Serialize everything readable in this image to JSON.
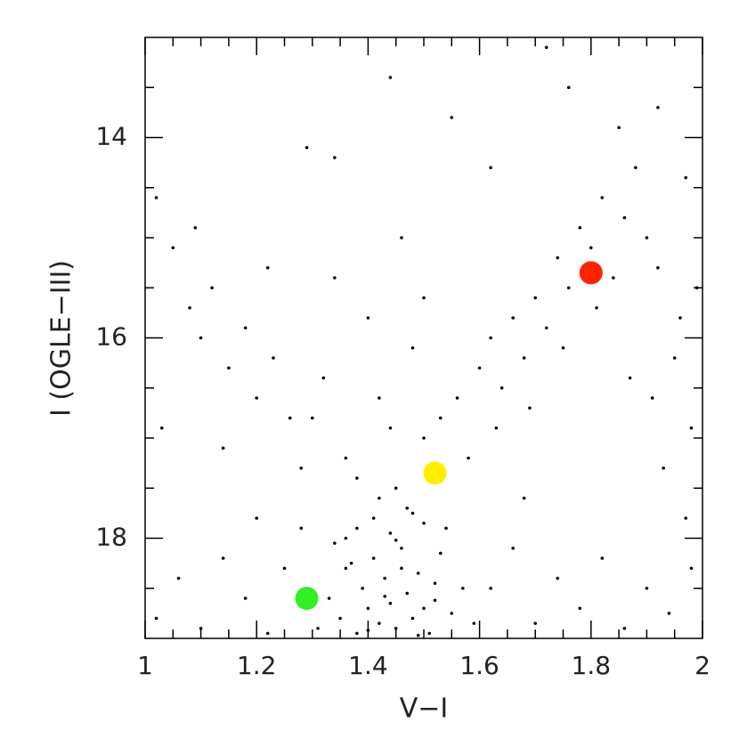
{
  "chart_data": {
    "type": "scatter",
    "xlabel": "V−I",
    "ylabel": "I (OGLE−III)",
    "xlim": [
      1,
      2
    ],
    "xticks": [
      1,
      1.2,
      1.4,
      1.6,
      1.8,
      2
    ],
    "xminor_ticks": [
      1.05,
      1.1,
      1.15,
      1.25,
      1.3,
      1.35,
      1.45,
      1.5,
      1.55,
      1.65,
      1.7,
      1.75,
      1.85,
      1.9,
      1.95
    ],
    "ylim": [
      13,
      19
    ],
    "y_inverted": true,
    "yticks": [
      14,
      16,
      18
    ],
    "yminor_ticks": [
      13.5,
      14.5,
      15,
      15.5,
      16.5,
      17,
      17.5,
      18.5
    ],
    "series": [
      {
        "color": "#000000",
        "x": [
          1.31,
          1.33,
          1.35,
          1.36,
          1.38,
          1.39,
          1.4,
          1.41,
          1.42,
          1.43,
          1.44,
          1.45,
          1.46,
          1.47,
          1.48,
          1.49,
          1.5,
          1.51,
          1.52,
          1.53,
          1.55,
          1.57,
          1.59,
          1.34,
          1.37,
          1.4,
          1.43,
          1.46,
          1.49,
          1.52,
          1.38,
          1.41,
          1.44,
          1.47,
          1.5,
          1.36,
          1.42,
          1.48,
          1.54,
          1.45,
          1.02,
          1.06,
          1.1,
          1.14,
          1.18,
          1.22,
          1.25,
          1.28,
          1.62,
          1.66,
          1.7,
          1.74,
          1.78,
          1.82,
          1.86,
          1.9,
          1.94,
          1.98,
          1.2,
          1.68,
          1.5,
          1.53,
          1.56,
          1.58,
          1.6,
          1.62,
          1.64,
          1.66,
          1.68,
          1.7,
          1.72,
          1.74,
          1.76,
          1.78,
          1.8,
          1.82,
          1.84,
          1.86,
          1.88,
          1.9,
          1.63,
          1.69,
          1.75,
          1.81,
          1.87,
          1.02,
          1.05,
          1.08,
          1.1,
          1.12,
          1.15,
          1.18,
          1.2,
          1.23,
          1.26,
          1.03,
          1.09,
          1.14,
          1.22,
          1.28,
          1.32,
          1.36,
          1.4,
          1.44,
          1.48,
          1.34,
          1.38,
          1.42,
          1.46,
          1.3,
          1.5,
          1.45,
          1.29,
          1.34,
          1.44,
          1.55,
          1.62,
          1.72,
          1.76,
          1.85,
          1.92,
          1.97,
          1.92,
          1.95,
          1.98,
          1.93,
          1.96,
          1.99,
          1.91,
          1.97
        ],
        "values": [
          18.9,
          18.6,
          18.8,
          18.3,
          18.95,
          18.5,
          18.7,
          18.2,
          18.85,
          18.4,
          18.65,
          18.9,
          18.1,
          18.55,
          18.8,
          18.35,
          18.7,
          18.95,
          18.45,
          18.15,
          18.75,
          18.5,
          18.85,
          18.05,
          18.25,
          18.92,
          18.58,
          18.3,
          18.97,
          18.62,
          17.9,
          17.8,
          17.95,
          17.7,
          17.85,
          18.0,
          17.6,
          17.75,
          17.9,
          18.02,
          18.8,
          18.4,
          18.9,
          18.2,
          18.6,
          18.95,
          18.3,
          17.9,
          18.5,
          18.1,
          18.85,
          18.4,
          18.7,
          18.2,
          18.9,
          18.5,
          18.75,
          18.3,
          17.8,
          17.6,
          17.0,
          16.8,
          16.6,
          17.2,
          16.3,
          16.0,
          16.5,
          15.8,
          16.2,
          15.6,
          15.9,
          15.2,
          15.5,
          14.9,
          15.1,
          14.6,
          15.4,
          14.8,
          14.3,
          15.0,
          16.9,
          16.7,
          16.1,
          15.7,
          16.4,
          14.6,
          15.1,
          15.7,
          16.0,
          15.5,
          16.3,
          15.9,
          16.6,
          16.2,
          16.8,
          16.9,
          14.9,
          17.1,
          15.3,
          17.3,
          16.4,
          17.2,
          15.8,
          16.9,
          16.1,
          15.4,
          17.4,
          16.6,
          15.0,
          16.8,
          15.6,
          17.5,
          14.1,
          14.2,
          13.4,
          13.8,
          14.3,
          13.1,
          13.5,
          13.9,
          13.7,
          14.4,
          15.3,
          16.2,
          16.9,
          17.3,
          15.8,
          15.5,
          16.6,
          17.8
        ]
      },
      {
        "color": "#33ee22",
        "highlight": true,
        "x": [
          1.29
        ],
        "values": [
          18.6
        ]
      },
      {
        "color": "#ffee00",
        "highlight": true,
        "x": [
          1.52
        ],
        "values": [
          17.35
        ]
      },
      {
        "color": "#ff2200",
        "highlight": true,
        "x": [
          1.8
        ],
        "values": [
          15.35
        ]
      }
    ]
  }
}
